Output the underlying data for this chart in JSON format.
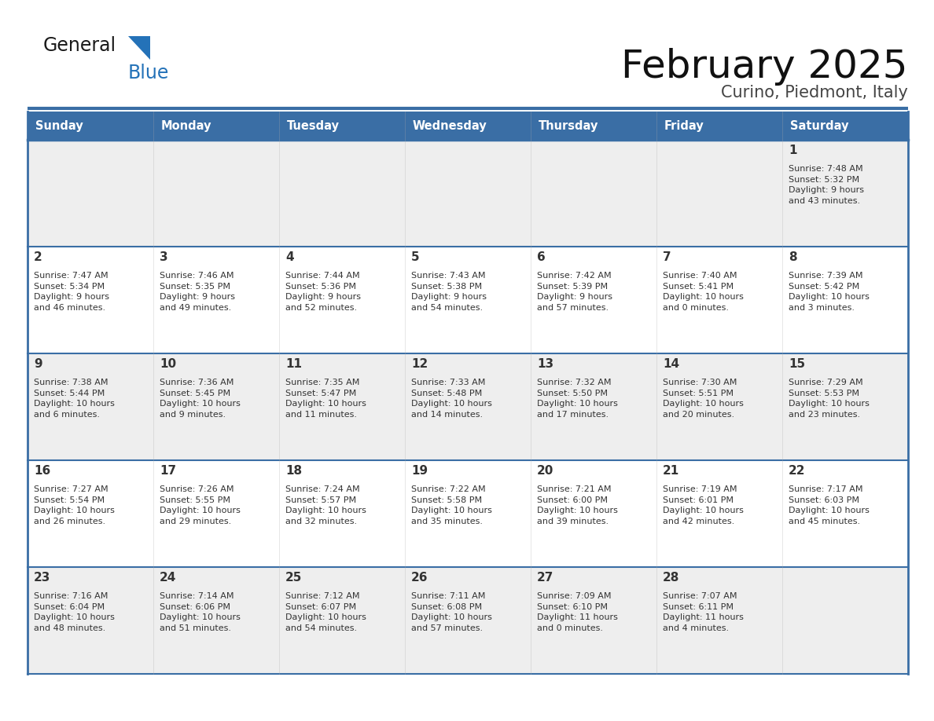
{
  "title": "February 2025",
  "subtitle": "Curino, Piedmont, Italy",
  "header_bg": "#3a6ea5",
  "header_text": "#ffffff",
  "row_bg_even": "#eeeeee",
  "row_bg_odd": "#ffffff",
  "border_color": "#3a6ea5",
  "text_color": "#333333",
  "days_of_week": [
    "Sunday",
    "Monday",
    "Tuesday",
    "Wednesday",
    "Thursday",
    "Friday",
    "Saturday"
  ],
  "calendar": [
    [
      null,
      null,
      null,
      null,
      null,
      null,
      {
        "day": "1",
        "sunrise": "7:48 AM",
        "sunset": "5:32 PM",
        "daylight": "9 hours\nand 43 minutes."
      }
    ],
    [
      {
        "day": "2",
        "sunrise": "7:47 AM",
        "sunset": "5:34 PM",
        "daylight": "9 hours\nand 46 minutes."
      },
      {
        "day": "3",
        "sunrise": "7:46 AM",
        "sunset": "5:35 PM",
        "daylight": "9 hours\nand 49 minutes."
      },
      {
        "day": "4",
        "sunrise": "7:44 AM",
        "sunset": "5:36 PM",
        "daylight": "9 hours\nand 52 minutes."
      },
      {
        "day": "5",
        "sunrise": "7:43 AM",
        "sunset": "5:38 PM",
        "daylight": "9 hours\nand 54 minutes."
      },
      {
        "day": "6",
        "sunrise": "7:42 AM",
        "sunset": "5:39 PM",
        "daylight": "9 hours\nand 57 minutes."
      },
      {
        "day": "7",
        "sunrise": "7:40 AM",
        "sunset": "5:41 PM",
        "daylight": "10 hours\nand 0 minutes."
      },
      {
        "day": "8",
        "sunrise": "7:39 AM",
        "sunset": "5:42 PM",
        "daylight": "10 hours\nand 3 minutes."
      }
    ],
    [
      {
        "day": "9",
        "sunrise": "7:38 AM",
        "sunset": "5:44 PM",
        "daylight": "10 hours\nand 6 minutes."
      },
      {
        "day": "10",
        "sunrise": "7:36 AM",
        "sunset": "5:45 PM",
        "daylight": "10 hours\nand 9 minutes."
      },
      {
        "day": "11",
        "sunrise": "7:35 AM",
        "sunset": "5:47 PM",
        "daylight": "10 hours\nand 11 minutes."
      },
      {
        "day": "12",
        "sunrise": "7:33 AM",
        "sunset": "5:48 PM",
        "daylight": "10 hours\nand 14 minutes."
      },
      {
        "day": "13",
        "sunrise": "7:32 AM",
        "sunset": "5:50 PM",
        "daylight": "10 hours\nand 17 minutes."
      },
      {
        "day": "14",
        "sunrise": "7:30 AM",
        "sunset": "5:51 PM",
        "daylight": "10 hours\nand 20 minutes."
      },
      {
        "day": "15",
        "sunrise": "7:29 AM",
        "sunset": "5:53 PM",
        "daylight": "10 hours\nand 23 minutes."
      }
    ],
    [
      {
        "day": "16",
        "sunrise": "7:27 AM",
        "sunset": "5:54 PM",
        "daylight": "10 hours\nand 26 minutes."
      },
      {
        "day": "17",
        "sunrise": "7:26 AM",
        "sunset": "5:55 PM",
        "daylight": "10 hours\nand 29 minutes."
      },
      {
        "day": "18",
        "sunrise": "7:24 AM",
        "sunset": "5:57 PM",
        "daylight": "10 hours\nand 32 minutes."
      },
      {
        "day": "19",
        "sunrise": "7:22 AM",
        "sunset": "5:58 PM",
        "daylight": "10 hours\nand 35 minutes."
      },
      {
        "day": "20",
        "sunrise": "7:21 AM",
        "sunset": "6:00 PM",
        "daylight": "10 hours\nand 39 minutes."
      },
      {
        "day": "21",
        "sunrise": "7:19 AM",
        "sunset": "6:01 PM",
        "daylight": "10 hours\nand 42 minutes."
      },
      {
        "day": "22",
        "sunrise": "7:17 AM",
        "sunset": "6:03 PM",
        "daylight": "10 hours\nand 45 minutes."
      }
    ],
    [
      {
        "day": "23",
        "sunrise": "7:16 AM",
        "sunset": "6:04 PM",
        "daylight": "10 hours\nand 48 minutes."
      },
      {
        "day": "24",
        "sunrise": "7:14 AM",
        "sunset": "6:06 PM",
        "daylight": "10 hours\nand 51 minutes."
      },
      {
        "day": "25",
        "sunrise": "7:12 AM",
        "sunset": "6:07 PM",
        "daylight": "10 hours\nand 54 minutes."
      },
      {
        "day": "26",
        "sunrise": "7:11 AM",
        "sunset": "6:08 PM",
        "daylight": "10 hours\nand 57 minutes."
      },
      {
        "day": "27",
        "sunrise": "7:09 AM",
        "sunset": "6:10 PM",
        "daylight": "11 hours\nand 0 minutes."
      },
      {
        "day": "28",
        "sunrise": "7:07 AM",
        "sunset": "6:11 PM",
        "daylight": "11 hours\nand 4 minutes."
      },
      null
    ]
  ],
  "num_rows": 5,
  "num_cols": 7,
  "fig_width": 11.88,
  "fig_height": 9.18,
  "logo_general_color": "#1a1a1a",
  "logo_blue_color": "#2472b8",
  "logo_triangle_color": "#2472b8"
}
